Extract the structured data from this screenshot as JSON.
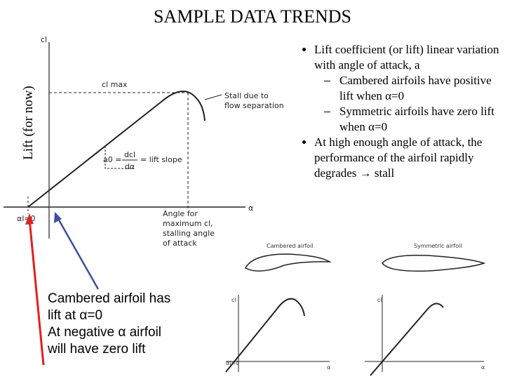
{
  "title": "SAMPLE DATA TRENDS",
  "y_axis_label": "Lift (for now)",
  "bullets": [
    {
      "text": "Lift coefficient (or lift) linear variation with angle of attack, a",
      "sub": [
        "Cambered airfoils have positive lift when α=0",
        "Symmetric airfoils have zero lift when α=0"
      ]
    },
    {
      "text": "At high enough angle of attack, the performance of the airfoil rapidly degrades → stall"
    }
  ],
  "diagram": {
    "cl": "cl",
    "cl_max": "cl max",
    "stall_note": [
      "Stall due to",
      "flow separation"
    ],
    "slope_lhs": "a0 =",
    "slope_num": "dcl",
    "slope_den": "dα",
    "slope_rhs": "= lift slope",
    "alpha": "α",
    "alpha_zero": "αl=0",
    "stall_angle": [
      "Angle for",
      "maximum cl,",
      "stalling angle",
      "of attack"
    ]
  },
  "note": [
    "Cambered airfoil has",
    "lift at α=0",
    "At negative α airfoil",
    "will have zero lift"
  ],
  "small_plots": [
    {
      "title": "Cambered airfoil",
      "y_label": "cl",
      "x_label": "α",
      "zero": "αl=0"
    },
    {
      "title": "Symmetric airfoil",
      "y_label": "cl",
      "x_label": "α"
    }
  ]
}
